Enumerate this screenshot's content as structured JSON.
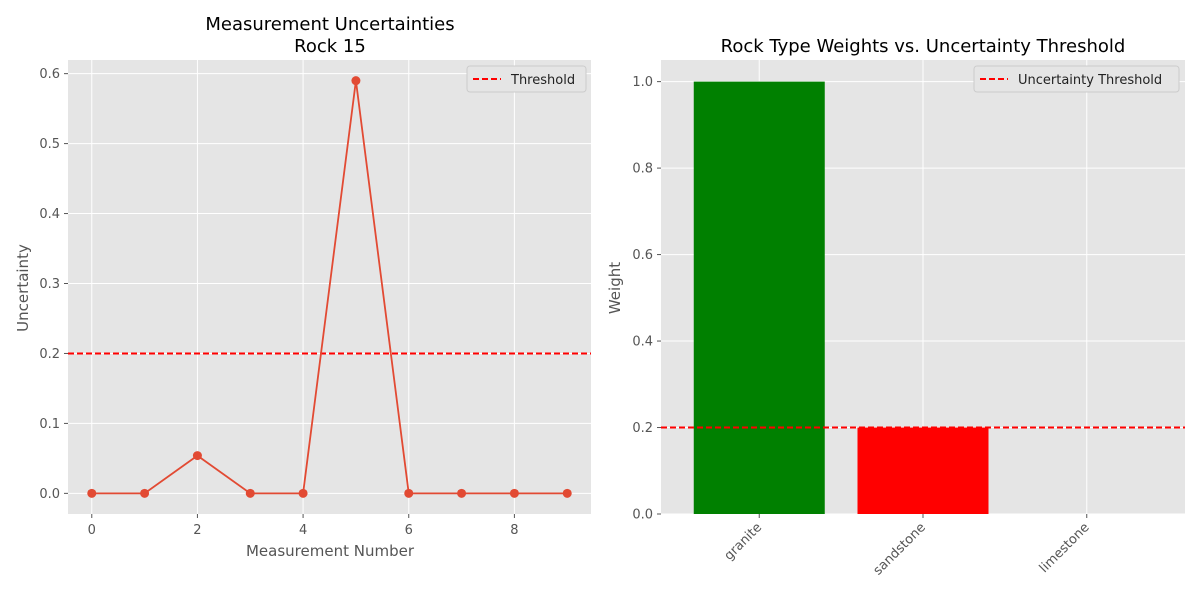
{
  "chart_data": [
    {
      "type": "line",
      "title": "Measurement Uncertainties\nRock 15",
      "xlabel": "Measurement Number",
      "ylabel": "Uncertainty",
      "xlim": [
        -0.45,
        9.45
      ],
      "ylim": [
        -0.0295,
        0.6195
      ],
      "xticks": [
        0,
        2,
        4,
        6,
        8
      ],
      "yticks": [
        0.0,
        0.1,
        0.2,
        0.3,
        0.4,
        0.5,
        0.6
      ],
      "ytick_labels": [
        "0.0",
        "0.1",
        "0.2",
        "0.3",
        "0.4",
        "0.5",
        "0.6"
      ],
      "grid": true,
      "legend_position": "top-right",
      "series": [
        {
          "x": [
            0,
            1,
            2,
            3,
            4,
            5,
            6,
            7,
            8,
            9
          ],
          "values": [
            0,
            0,
            0.054,
            0,
            0,
            0.59,
            0,
            0,
            0,
            0
          ],
          "color": "#E24A33"
        }
      ],
      "hlines": [
        {
          "name": "Threshold",
          "y": 0.2,
          "color": "#ff0000",
          "style": "dashed"
        }
      ]
    },
    {
      "type": "bar",
      "title": "Rock Type Weights vs. Uncertainty Threshold",
      "xlabel": "",
      "ylabel": "Weight",
      "categories": [
        "granite",
        "sandstone",
        "limestone"
      ],
      "values": [
        1.0,
        0.2,
        0.0
      ],
      "colors": [
        "#008000",
        "#ff0000",
        "#ff0000"
      ],
      "ylim": [
        0,
        1.05
      ],
      "yticks": [
        0.0,
        0.2,
        0.4,
        0.6,
        0.8,
        1.0
      ],
      "ytick_labels": [
        "0.0",
        "0.2",
        "0.4",
        "0.6",
        "0.8",
        "1.0"
      ],
      "xtick_rotation": 45,
      "grid": true,
      "legend_position": "top-right",
      "hlines": [
        {
          "name": "Uncertainty Threshold",
          "y": 0.2,
          "color": "#ff0000",
          "style": "dashed"
        }
      ]
    }
  ]
}
